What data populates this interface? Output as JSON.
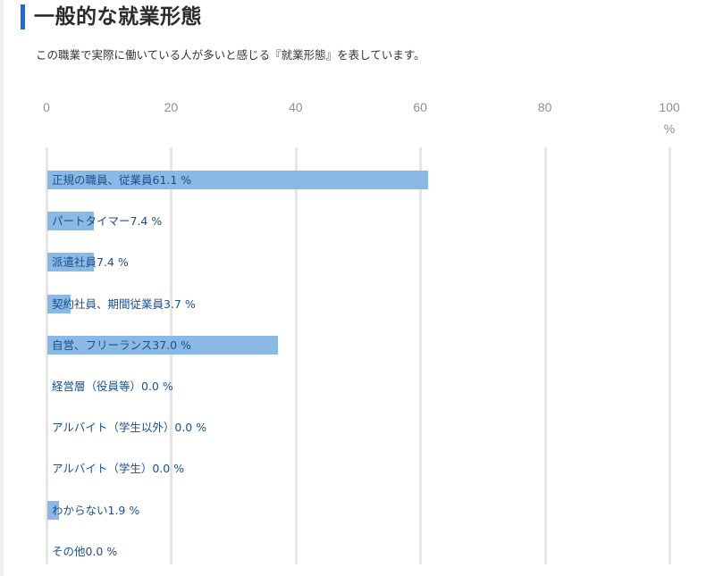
{
  "section": {
    "title": "一般的な就業形態",
    "description": "この職業で実際に働いている人が多いと感じる『就業形態』を表しています。",
    "accent_color": "#1a6fd6"
  },
  "chart_data": {
    "type": "bar",
    "orientation": "horizontal",
    "title": "一般的な就業形態",
    "xlabel": "%",
    "ylabel": "",
    "xlim": [
      0,
      100
    ],
    "x_ticks": [
      "0",
      "20",
      "40",
      "60",
      "80",
      "100"
    ],
    "unit_label": "%",
    "grid": true,
    "bar_color": "#8bb9e5",
    "label_color": "#1b4f8c",
    "categories": [
      "正規の職員、従業員",
      "パートタイマー",
      "派遣社員",
      "契約社員、期間従業員",
      "自営、フリーランス",
      "経営層（役員等）",
      "アルバイト（学生以外）",
      "アルバイト（学生）",
      "わからない",
      "その他"
    ],
    "values": [
      61.1,
      7.4,
      7.4,
      3.7,
      37.0,
      0.0,
      0.0,
      0.0,
      1.9,
      0.0
    ],
    "labels": [
      "正規の職員、従業員61.1 %",
      "パートタイマー7.4 %",
      "派遣社員7.4 %",
      "契約社員、期間従業員3.7 %",
      "自営、フリーランス37.0 %",
      "経営層（役員等）0.0 %",
      "アルバイト（学生以外）0.0 %",
      "アルバイト（学生）0.0 %",
      "わからない1.9 %",
      "その他0.0 %"
    ]
  }
}
